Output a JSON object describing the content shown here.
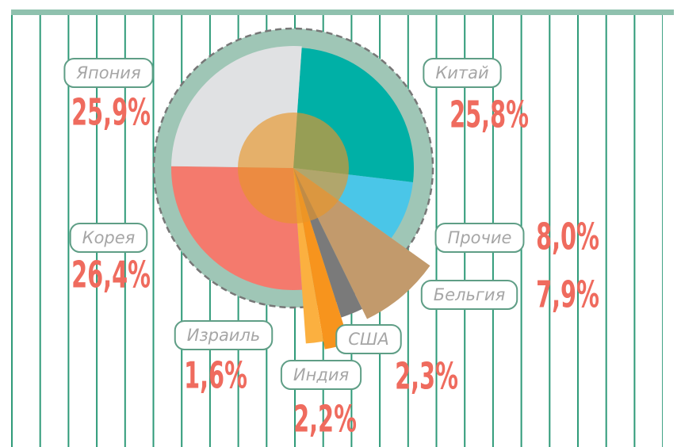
{
  "chart_data": {
    "type": "pie",
    "categories": [
      "Китай",
      "Прочие",
      "Бельгия",
      "США",
      "Индия",
      "Израиль",
      "Корея",
      "Япония"
    ],
    "values": [
      25.8,
      8.0,
      7.9,
      2.3,
      2.2,
      1.6,
      26.4,
      25.9
    ],
    "value_labels": [
      "25,8%",
      "8,0%",
      "7,9%",
      "2,3%",
      "2,2%",
      "1,6%",
      "26,4%",
      "25,9%"
    ],
    "colors": [
      "#00b0a6",
      "#4ac6e8",
      "#c29a6c",
      "#7a7a7a",
      "#f7941d",
      "#fbb040",
      "#f47a6d",
      "#e0e1e3"
    ]
  }
}
